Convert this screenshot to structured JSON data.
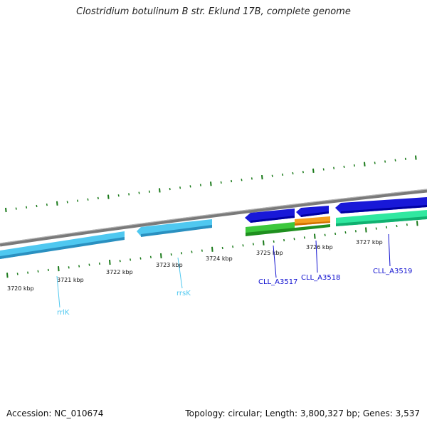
{
  "header": {
    "title": "Clostridium botulinum B str. Eklund 17B, complete genome"
  },
  "footer": {
    "accession": "Accession: NC_010674",
    "summary": "Topology: circular; Length: 3,800,327 bp; Genes: 3,537"
  },
  "axis": {
    "tick_labels": [
      "3720 kbp",
      "3721 kbp",
      "3722 kbp",
      "3723 kbp",
      "3724 kbp",
      "3725 kbp",
      "3726 kbp",
      "3727 kbp"
    ]
  },
  "features": [
    {
      "id": "rrlK",
      "label": "rrlK",
      "color": "#4fc8f0"
    },
    {
      "id": "rrsK",
      "label": "rrsK",
      "color": "#4fc8f0"
    },
    {
      "id": "CLL_A3517",
      "label": "CLL_A3517",
      "color": "#1010d0",
      "track_color": "#2fb82f"
    },
    {
      "id": "CLL_A3518",
      "label": "CLL_A3518",
      "color": "#1010d0",
      "track_color": "#f5a020"
    },
    {
      "id": "CLL_A3519",
      "label": "CLL_A3519",
      "color": "#1010d0",
      "track_color": "#30e8a0"
    }
  ],
  "colors": {
    "backbone": "#8a8a8a",
    "gc_ticks": "#1a7a1a",
    "rrna": "#4fc8f0",
    "cds": "#1010d0",
    "label_rrna": "#4fc8f0",
    "label_cds": "#1010d0"
  }
}
